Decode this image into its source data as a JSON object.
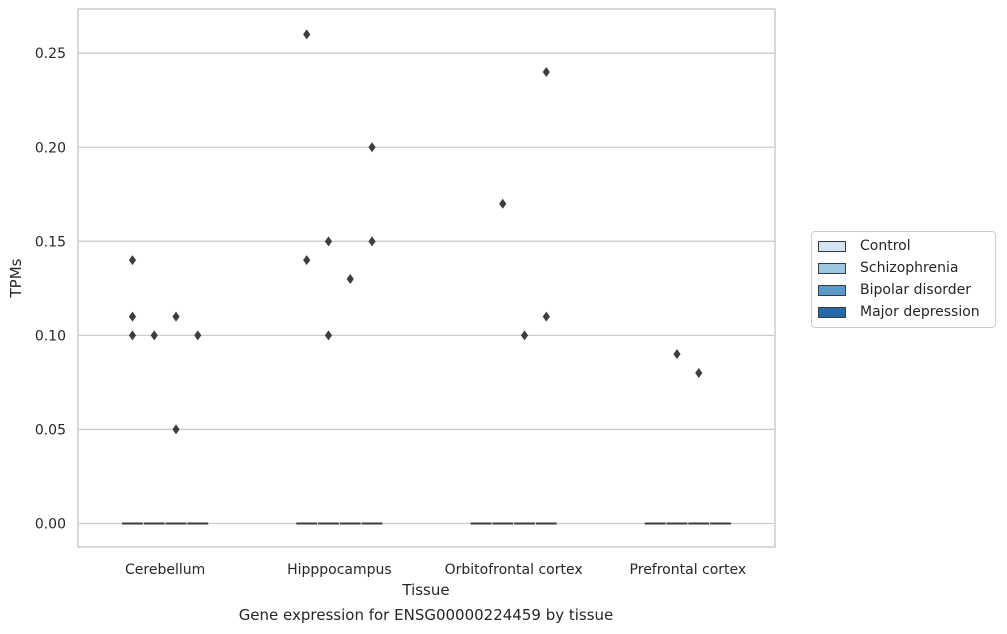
{
  "chart_data": {
    "type": "box",
    "title": "",
    "caption": "Gene expression for ENSG00000224459 by tissue",
    "xlabel": "Tissue",
    "ylabel": "TPMs",
    "categories": [
      "Cerebellum",
      "Hipppocampus",
      "Orbitofrontal cortex",
      "Prefrontal cortex"
    ],
    "ylim": [
      -0.0125,
      0.2735
    ],
    "yticks": [
      0.0,
      0.05,
      0.1,
      0.15,
      0.2,
      0.25
    ],
    "ytick_labels": [
      "0.00",
      "0.05",
      "0.10",
      "0.15",
      "0.20",
      "0.25"
    ],
    "grid": "horizontal",
    "legend_position": "right",
    "series": [
      {
        "name": "Control",
        "color": "#d3e3f2",
        "median": [
          0,
          0,
          0,
          0
        ],
        "outliers": [
          [
            0.14,
            0.11,
            0.1
          ],
          [
            0.26,
            0.14
          ],
          [],
          []
        ]
      },
      {
        "name": "Schizophrenia",
        "color": "#9cc7e0",
        "median": [
          0,
          0,
          0,
          0
        ],
        "outliers": [
          [
            0.1
          ],
          [
            0.15,
            0.1
          ],
          [
            0.17
          ],
          [
            0.09
          ]
        ]
      },
      {
        "name": "Bipolar disorder",
        "color": "#5a9bc9",
        "median": [
          0,
          0,
          0,
          0
        ],
        "outliers": [
          [
            0.11,
            0.05
          ],
          [
            0.13
          ],
          [
            0.1
          ],
          [
            0.08
          ]
        ]
      },
      {
        "name": "Major depression",
        "color": "#2469a8",
        "median": [
          0,
          0,
          0,
          0
        ],
        "outliers": [
          [
            0.1
          ],
          [
            0.2,
            0.15
          ],
          [
            0.24,
            0.11
          ],
          []
        ]
      }
    ]
  }
}
